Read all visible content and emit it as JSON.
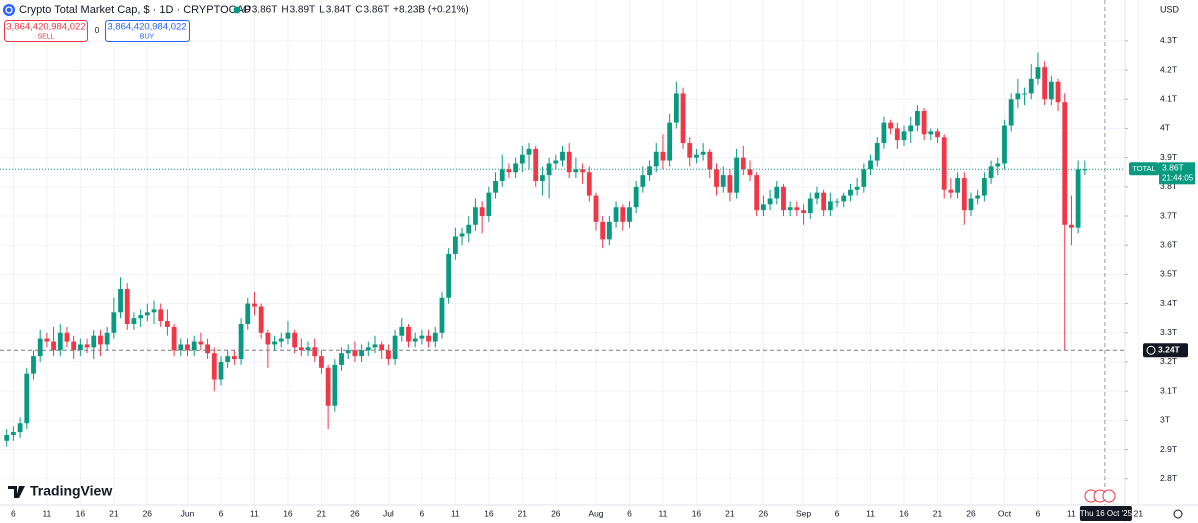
{
  "chart_data": {
    "type": "candlestick",
    "title": "Crypto Total Market Cap, $ · 1D · CRYPTOCAP",
    "ohlc_legend": [
      {
        "label": "O",
        "value": "3.86T"
      },
      {
        "label": "H",
        "value": "3.89T"
      },
      {
        "label": "L",
        "value": "3.84T"
      },
      {
        "label": "C",
        "value": "3.86T"
      }
    ],
    "change": "+8.23B (+0.21%)",
    "sell": {
      "price": "3,864,420,984,022",
      "label": "SELL"
    },
    "spread": "0",
    "buy": {
      "price": "3,864,420,984,022",
      "label": "BUY"
    },
    "currency": "USD",
    "brand": "TradingView",
    "up_color": "#089981",
    "down_color": "#f23645",
    "grid": true,
    "ylim": [
      2.71,
      4.44
    ],
    "yticks": [
      {
        "value": 2.8,
        "label": "2.8T"
      },
      {
        "value": 2.9,
        "label": "2.9T"
      },
      {
        "value": 3,
        "label": "3T"
      },
      {
        "value": 3.1,
        "label": "3.1T"
      },
      {
        "value": 3.2,
        "label": "3.2T"
      },
      {
        "value": 3.3,
        "label": "3.3T"
      },
      {
        "value": 3.4,
        "label": "3.4T"
      },
      {
        "value": 3.5,
        "label": "3.5T"
      },
      {
        "value": 3.6,
        "label": "3.6T"
      },
      {
        "value": 3.7,
        "label": "3.7T"
      },
      {
        "value": 3.8,
        "label": "3.8T"
      },
      {
        "value": 3.9,
        "label": "3.9T"
      },
      {
        "value": 4,
        "label": "4T"
      },
      {
        "value": 4.1,
        "label": "4.1T"
      },
      {
        "value": 4.2,
        "label": "4.2T"
      },
      {
        "value": 4.3,
        "label": "4.3T"
      }
    ],
    "xlim": [
      "2025-05-04",
      "2025-10-19"
    ],
    "xticks": [
      {
        "value": "2025-05-06",
        "label": "6"
      },
      {
        "value": "2025-05-11",
        "label": "11"
      },
      {
        "value": "2025-05-16",
        "label": "16"
      },
      {
        "value": "2025-05-21",
        "label": "21"
      },
      {
        "value": "2025-05-26",
        "label": "26"
      },
      {
        "value": "2025-06-01",
        "label": "Jun"
      },
      {
        "value": "2025-06-06",
        "label": "6"
      },
      {
        "value": "2025-06-11",
        "label": "11"
      },
      {
        "value": "2025-06-16",
        "label": "16"
      },
      {
        "value": "2025-06-21",
        "label": "21"
      },
      {
        "value": "2025-06-26",
        "label": "26"
      },
      {
        "value": "2025-07-01",
        "label": "Jul"
      },
      {
        "value": "2025-07-06",
        "label": "6"
      },
      {
        "value": "2025-07-11",
        "label": "11"
      },
      {
        "value": "2025-07-16",
        "label": "16"
      },
      {
        "value": "2025-07-21",
        "label": "21"
      },
      {
        "value": "2025-07-26",
        "label": "26"
      },
      {
        "value": "2025-08-01",
        "label": "Aug"
      },
      {
        "value": "2025-08-06",
        "label": "6"
      },
      {
        "value": "2025-08-11",
        "label": "11"
      },
      {
        "value": "2025-08-16",
        "label": "16"
      },
      {
        "value": "2025-08-21",
        "label": "21"
      },
      {
        "value": "2025-08-26",
        "label": "26"
      },
      {
        "value": "2025-09-01",
        "label": "Sep"
      },
      {
        "value": "2025-09-06",
        "label": "6"
      },
      {
        "value": "2025-09-11",
        "label": "11"
      },
      {
        "value": "2025-09-16",
        "label": "16"
      },
      {
        "value": "2025-09-21",
        "label": "21"
      },
      {
        "value": "2025-09-26",
        "label": "26"
      },
      {
        "value": "2025-10-01",
        "label": "Oct"
      },
      {
        "value": "2025-10-06",
        "label": "6"
      },
      {
        "value": "2025-10-11",
        "label": "11"
      },
      {
        "value": "2025-10-21",
        "label": "21"
      }
    ],
    "last": {
      "name": "TOTAL",
      "value": 3.86,
      "value_label": "3.86T",
      "countdown": "21:44:05"
    },
    "crosshair": {
      "date": "2025-10-16",
      "date_label": "Thu 16 Oct '25",
      "value": 3.24,
      "value_label": "3.24T"
    },
    "x": [
      "2025-05-05",
      "2025-05-06",
      "2025-05-07",
      "2025-05-08",
      "2025-05-09",
      "2025-05-10",
      "2025-05-11",
      "2025-05-12",
      "2025-05-13",
      "2025-05-14",
      "2025-05-15",
      "2025-05-16",
      "2025-05-17",
      "2025-05-18",
      "2025-05-19",
      "2025-05-20",
      "2025-05-21",
      "2025-05-22",
      "2025-05-23",
      "2025-05-24",
      "2025-05-25",
      "2025-05-26",
      "2025-05-27",
      "2025-05-28",
      "2025-05-29",
      "2025-05-30",
      "2025-05-31",
      "2025-06-01",
      "2025-06-02",
      "2025-06-03",
      "2025-06-04",
      "2025-06-05",
      "2025-06-06",
      "2025-06-07",
      "2025-06-08",
      "2025-06-09",
      "2025-06-10",
      "2025-06-11",
      "2025-06-12",
      "2025-06-13",
      "2025-06-14",
      "2025-06-15",
      "2025-06-16",
      "2025-06-17",
      "2025-06-18",
      "2025-06-19",
      "2025-06-20",
      "2025-06-21",
      "2025-06-22",
      "2025-06-23",
      "2025-06-24",
      "2025-06-25",
      "2025-06-26",
      "2025-06-27",
      "2025-06-28",
      "2025-06-29",
      "2025-06-30",
      "2025-07-01",
      "2025-07-02",
      "2025-07-03",
      "2025-07-04",
      "2025-07-05",
      "2025-07-06",
      "2025-07-07",
      "2025-07-08",
      "2025-07-09",
      "2025-07-10",
      "2025-07-11",
      "2025-07-12",
      "2025-07-13",
      "2025-07-14",
      "2025-07-15",
      "2025-07-16",
      "2025-07-17",
      "2025-07-18",
      "2025-07-19",
      "2025-07-20",
      "2025-07-21",
      "2025-07-22",
      "2025-07-23",
      "2025-07-24",
      "2025-07-25",
      "2025-07-26",
      "2025-07-27",
      "2025-07-28",
      "2025-07-29",
      "2025-07-30",
      "2025-07-31",
      "2025-08-01",
      "2025-08-02",
      "2025-08-03",
      "2025-08-04",
      "2025-08-05",
      "2025-08-06",
      "2025-08-07",
      "2025-08-08",
      "2025-08-09",
      "2025-08-10",
      "2025-08-11",
      "2025-08-12",
      "2025-08-13",
      "2025-08-14",
      "2025-08-15",
      "2025-08-16",
      "2025-08-17",
      "2025-08-18",
      "2025-08-19",
      "2025-08-20",
      "2025-08-21",
      "2025-08-22",
      "2025-08-23",
      "2025-08-24",
      "2025-08-25",
      "2025-08-26",
      "2025-08-27",
      "2025-08-28",
      "2025-08-29",
      "2025-08-30",
      "2025-08-31",
      "2025-09-01",
      "2025-09-02",
      "2025-09-03",
      "2025-09-04",
      "2025-09-05",
      "2025-09-06",
      "2025-09-07",
      "2025-09-08",
      "2025-09-09",
      "2025-09-10",
      "2025-09-11",
      "2025-09-12",
      "2025-09-13",
      "2025-09-14",
      "2025-09-15",
      "2025-09-16",
      "2025-09-17",
      "2025-09-18",
      "2025-09-19",
      "2025-09-20",
      "2025-09-21",
      "2025-09-22",
      "2025-09-23",
      "2025-09-24",
      "2025-09-25",
      "2025-09-26",
      "2025-09-27",
      "2025-09-28",
      "2025-09-29",
      "2025-09-30",
      "2025-10-01",
      "2025-10-02",
      "2025-10-03",
      "2025-10-04",
      "2025-10-05",
      "2025-10-06",
      "2025-10-07",
      "2025-10-08",
      "2025-10-09",
      "2025-10-10",
      "2025-10-11",
      "2025-10-12",
      "2025-10-13"
    ],
    "ohlc": [
      [
        2.93,
        2.97,
        2.91,
        2.95
      ],
      [
        2.95,
        2.98,
        2.93,
        2.96
      ],
      [
        2.96,
        3.01,
        2.94,
        2.99
      ],
      [
        2.99,
        3.18,
        2.97,
        3.16
      ],
      [
        3.16,
        3.24,
        3.14,
        3.22
      ],
      [
        3.22,
        3.31,
        3.2,
        3.28
      ],
      [
        3.28,
        3.3,
        3.25,
        3.27
      ],
      [
        3.27,
        3.32,
        3.22,
        3.24
      ],
      [
        3.24,
        3.33,
        3.22,
        3.3
      ],
      [
        3.3,
        3.32,
        3.25,
        3.27
      ],
      [
        3.27,
        3.29,
        3.21,
        3.24
      ],
      [
        3.24,
        3.28,
        3.22,
        3.26
      ],
      [
        3.26,
        3.28,
        3.23,
        3.25
      ],
      [
        3.25,
        3.31,
        3.21,
        3.29
      ],
      [
        3.29,
        3.31,
        3.22,
        3.26
      ],
      [
        3.26,
        3.32,
        3.24,
        3.3
      ],
      [
        3.3,
        3.42,
        3.28,
        3.37
      ],
      [
        3.37,
        3.49,
        3.35,
        3.45
      ],
      [
        3.45,
        3.47,
        3.31,
        3.33
      ],
      [
        3.33,
        3.37,
        3.31,
        3.35
      ],
      [
        3.35,
        3.38,
        3.32,
        3.36
      ],
      [
        3.36,
        3.4,
        3.34,
        3.37
      ],
      [
        3.37,
        3.41,
        3.33,
        3.38
      ],
      [
        3.38,
        3.4,
        3.32,
        3.34
      ],
      [
        3.34,
        3.38,
        3.29,
        3.32
      ],
      [
        3.32,
        3.33,
        3.22,
        3.24
      ],
      [
        3.24,
        3.28,
        3.22,
        3.26
      ],
      [
        3.26,
        3.28,
        3.22,
        3.24
      ],
      [
        3.24,
        3.29,
        3.22,
        3.27
      ],
      [
        3.27,
        3.3,
        3.24,
        3.26
      ],
      [
        3.26,
        3.28,
        3.21,
        3.23
      ],
      [
        3.23,
        3.25,
        3.1,
        3.14
      ],
      [
        3.14,
        3.22,
        3.12,
        3.2
      ],
      [
        3.2,
        3.24,
        3.18,
        3.22
      ],
      [
        3.22,
        3.24,
        3.19,
        3.21
      ],
      [
        3.21,
        3.35,
        3.19,
        3.33
      ],
      [
        3.33,
        3.42,
        3.31,
        3.4
      ],
      [
        3.4,
        3.44,
        3.36,
        3.39
      ],
      [
        3.39,
        3.4,
        3.28,
        3.3
      ],
      [
        3.3,
        3.31,
        3.18,
        3.26
      ],
      [
        3.26,
        3.29,
        3.24,
        3.27
      ],
      [
        3.27,
        3.3,
        3.25,
        3.28
      ],
      [
        3.28,
        3.34,
        3.26,
        3.3
      ],
      [
        3.3,
        3.31,
        3.23,
        3.25
      ],
      [
        3.25,
        3.28,
        3.22,
        3.24
      ],
      [
        3.24,
        3.27,
        3.22,
        3.25
      ],
      [
        3.25,
        3.28,
        3.2,
        3.22
      ],
      [
        3.22,
        3.24,
        3.16,
        3.18
      ],
      [
        3.18,
        3.19,
        2.97,
        3.05
      ],
      [
        3.05,
        3.21,
        3.03,
        3.19
      ],
      [
        3.19,
        3.25,
        3.17,
        3.23
      ],
      [
        3.23,
        3.26,
        3.21,
        3.24
      ],
      [
        3.24,
        3.27,
        3.2,
        3.22
      ],
      [
        3.22,
        3.26,
        3.2,
        3.24
      ],
      [
        3.24,
        3.27,
        3.22,
        3.25
      ],
      [
        3.25,
        3.29,
        3.23,
        3.26
      ],
      [
        3.26,
        3.27,
        3.21,
        3.24
      ],
      [
        3.24,
        3.26,
        3.19,
        3.21
      ],
      [
        3.21,
        3.31,
        3.19,
        3.29
      ],
      [
        3.29,
        3.35,
        3.27,
        3.32
      ],
      [
        3.32,
        3.33,
        3.25,
        3.27
      ],
      [
        3.27,
        3.3,
        3.25,
        3.28
      ],
      [
        3.28,
        3.31,
        3.26,
        3.29
      ],
      [
        3.29,
        3.31,
        3.25,
        3.27
      ],
      [
        3.27,
        3.32,
        3.25,
        3.3
      ],
      [
        3.3,
        3.44,
        3.28,
        3.42
      ],
      [
        3.42,
        3.59,
        3.4,
        3.57
      ],
      [
        3.57,
        3.66,
        3.55,
        3.63
      ],
      [
        3.63,
        3.66,
        3.6,
        3.64
      ],
      [
        3.64,
        3.7,
        3.61,
        3.67
      ],
      [
        3.67,
        3.76,
        3.65,
        3.73
      ],
      [
        3.73,
        3.75,
        3.64,
        3.7
      ],
      [
        3.7,
        3.8,
        3.68,
        3.78
      ],
      [
        3.78,
        3.85,
        3.76,
        3.82
      ],
      [
        3.82,
        3.91,
        3.8,
        3.86
      ],
      [
        3.86,
        3.88,
        3.83,
        3.85
      ],
      [
        3.85,
        3.9,
        3.83,
        3.88
      ],
      [
        3.88,
        3.94,
        3.85,
        3.91
      ],
      [
        3.91,
        3.95,
        3.86,
        3.93
      ],
      [
        3.93,
        3.94,
        3.8,
        3.82
      ],
      [
        3.82,
        3.87,
        3.77,
        3.84
      ],
      [
        3.84,
        3.9,
        3.76,
        3.88
      ],
      [
        3.88,
        3.91,
        3.86,
        3.89
      ],
      [
        3.89,
        3.94,
        3.87,
        3.92
      ],
      [
        3.92,
        3.95,
        3.83,
        3.85
      ],
      [
        3.85,
        3.9,
        3.83,
        3.86
      ],
      [
        3.86,
        3.88,
        3.81,
        3.85
      ],
      [
        3.85,
        3.87,
        3.75,
        3.77
      ],
      [
        3.77,
        3.78,
        3.65,
        3.68
      ],
      [
        3.68,
        3.7,
        3.59,
        3.62
      ],
      [
        3.62,
        3.7,
        3.6,
        3.68
      ],
      [
        3.68,
        3.75,
        3.66,
        3.73
      ],
      [
        3.73,
        3.74,
        3.65,
        3.68
      ],
      [
        3.68,
        3.75,
        3.66,
        3.73
      ],
      [
        3.73,
        3.82,
        3.71,
        3.8
      ],
      [
        3.8,
        3.87,
        3.78,
        3.84
      ],
      [
        3.84,
        3.89,
        3.82,
        3.87
      ],
      [
        3.87,
        3.95,
        3.85,
        3.92
      ],
      [
        3.92,
        3.98,
        3.86,
        3.89
      ],
      [
        3.89,
        4.05,
        3.87,
        4.02
      ],
      [
        4.02,
        4.16,
        4,
        4.12
      ],
      [
        4.12,
        4.14,
        3.93,
        3.95
      ],
      [
        3.95,
        3.97,
        3.87,
        3.9
      ],
      [
        3.9,
        3.93,
        3.88,
        3.91
      ],
      [
        3.91,
        3.95,
        3.89,
        3.92
      ],
      [
        3.92,
        3.93,
        3.83,
        3.86
      ],
      [
        3.86,
        3.88,
        3.77,
        3.8
      ],
      [
        3.8,
        3.87,
        3.78,
        3.84
      ],
      [
        3.84,
        3.86,
        3.75,
        3.78
      ],
      [
        3.78,
        3.93,
        3.76,
        3.9
      ],
      [
        3.9,
        3.94,
        3.84,
        3.86
      ],
      [
        3.86,
        3.89,
        3.82,
        3.84
      ],
      [
        3.84,
        3.85,
        3.7,
        3.72
      ],
      [
        3.72,
        3.77,
        3.7,
        3.74
      ],
      [
        3.74,
        3.79,
        3.72,
        3.76
      ],
      [
        3.76,
        3.82,
        3.74,
        3.8
      ],
      [
        3.8,
        3.81,
        3.7,
        3.72
      ],
      [
        3.72,
        3.75,
        3.7,
        3.73
      ],
      [
        3.73,
        3.75,
        3.7,
        3.72
      ],
      [
        3.72,
        3.74,
        3.67,
        3.71
      ],
      [
        3.71,
        3.78,
        3.69,
        3.76
      ],
      [
        3.76,
        3.8,
        3.74,
        3.78
      ],
      [
        3.78,
        3.79,
        3.7,
        3.72
      ],
      [
        3.72,
        3.78,
        3.7,
        3.75
      ],
      [
        3.75,
        3.76,
        3.73,
        3.75
      ],
      [
        3.75,
        3.78,
        3.73,
        3.77
      ],
      [
        3.77,
        3.81,
        3.75,
        3.79
      ],
      [
        3.79,
        3.83,
        3.77,
        3.8
      ],
      [
        3.8,
        3.88,
        3.78,
        3.86
      ],
      [
        3.86,
        3.91,
        3.84,
        3.89
      ],
      [
        3.89,
        3.97,
        3.87,
        3.95
      ],
      [
        3.95,
        4.04,
        3.93,
        4.02
      ],
      [
        4.02,
        4.03,
        3.98,
        4
      ],
      [
        4,
        4.02,
        3.93,
        3.96
      ],
      [
        3.96,
        4.01,
        3.94,
        3.99
      ],
      [
        3.99,
        4.04,
        3.95,
        4.01
      ],
      [
        4.01,
        4.08,
        3.99,
        4.06
      ],
      [
        4.06,
        4.07,
        3.96,
        3.98
      ],
      [
        3.98,
        4,
        3.96,
        3.99
      ],
      [
        3.99,
        4,
        3.95,
        3.97
      ],
      [
        3.97,
        3.98,
        3.76,
        3.79
      ],
      [
        3.79,
        3.83,
        3.76,
        3.78
      ],
      [
        3.78,
        3.85,
        3.76,
        3.83
      ],
      [
        3.83,
        3.85,
        3.67,
        3.72
      ],
      [
        3.72,
        3.78,
        3.7,
        3.76
      ],
      [
        3.76,
        3.79,
        3.74,
        3.77
      ],
      [
        3.77,
        3.85,
        3.75,
        3.83
      ],
      [
        3.83,
        3.89,
        3.81,
        3.87
      ],
      [
        3.87,
        3.9,
        3.84,
        3.88
      ],
      [
        3.88,
        4.03,
        3.86,
        4.01
      ],
      [
        4.01,
        4.12,
        3.99,
        4.1
      ],
      [
        4.1,
        4.17,
        4.07,
        4.12
      ],
      [
        4.12,
        4.14,
        4.08,
        4.12
      ],
      [
        4.12,
        4.22,
        4.1,
        4.17
      ],
      [
        4.17,
        4.26,
        4.15,
        4.21
      ],
      [
        4.21,
        4.23,
        4.08,
        4.1
      ],
      [
        4.1,
        4.18,
        4.08,
        4.16
      ],
      [
        4.16,
        4.17,
        4.06,
        4.09
      ],
      [
        4.09,
        4.12,
        3.24,
        3.67
      ],
      [
        3.67,
        3.77,
        3.6,
        3.66
      ],
      [
        3.66,
        3.89,
        3.64,
        3.86
      ],
      [
        3.86,
        3.89,
        3.84,
        3.86
      ]
    ]
  }
}
